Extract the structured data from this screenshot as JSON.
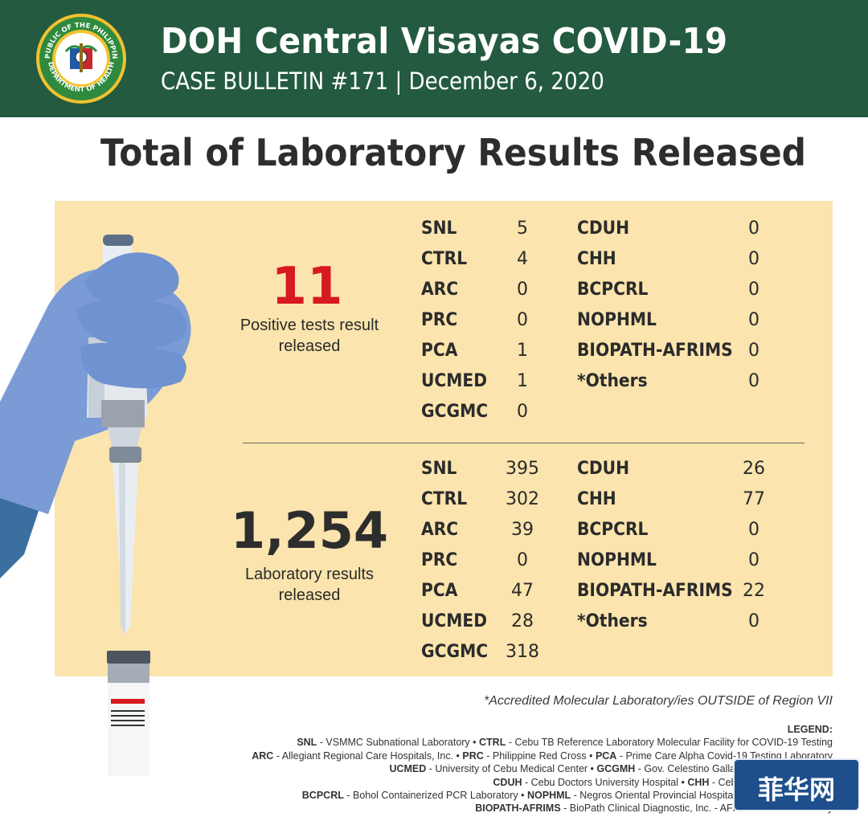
{
  "header": {
    "title": "DOH Central Visayas COVID-19",
    "subtitle": "CASE BULLETIN #171 | December 6, 2020",
    "seal": {
      "top_text": "REPUBLIC OF THE PHILIPPINES",
      "bottom_text": "DEPARTMENT OF HEALTH",
      "icon": "doh-seal-icon"
    }
  },
  "main_title": "Total of Laboratory Results Released",
  "positive": {
    "total": "11",
    "label_line1": "Positive tests result",
    "label_line2": "released",
    "left": [
      {
        "lab": "SNL",
        "value": "5"
      },
      {
        "lab": "CTRL",
        "value": "4"
      },
      {
        "lab": "ARC",
        "value": "0"
      },
      {
        "lab": "PRC",
        "value": "0"
      },
      {
        "lab": "PCA",
        "value": "1"
      },
      {
        "lab": "UCMED",
        "value": "1"
      },
      {
        "lab": "GCGMC",
        "value": "0"
      }
    ],
    "right": [
      {
        "lab": "CDUH",
        "value": "0"
      },
      {
        "lab": "CHH",
        "value": "0"
      },
      {
        "lab": "BCPCRL",
        "value": "0"
      },
      {
        "lab": "NOPHML",
        "value": "0"
      },
      {
        "lab": "BIOPATH-AFRIMS",
        "value": "0"
      },
      {
        "lab": "*Others",
        "value": "0"
      }
    ]
  },
  "released": {
    "total": "1,254",
    "label_line1": "Laboratory results",
    "label_line2": "released",
    "left": [
      {
        "lab": "SNL",
        "value": "395"
      },
      {
        "lab": "CTRL",
        "value": "302"
      },
      {
        "lab": "ARC",
        "value": "39"
      },
      {
        "lab": "PRC",
        "value": "0"
      },
      {
        "lab": "PCA",
        "value": "47"
      },
      {
        "lab": "UCMED",
        "value": "28"
      },
      {
        "lab": "GCGMC",
        "value": "318"
      }
    ],
    "right": [
      {
        "lab": "CDUH",
        "value": "26"
      },
      {
        "lab": "CHH",
        "value": "77"
      },
      {
        "lab": "BCPCRL",
        "value": "0"
      },
      {
        "lab": "NOPHML",
        "value": "0"
      },
      {
        "lab": "BIOPATH-AFRIMS",
        "value": "22"
      },
      {
        "lab": "*Others",
        "value": "0"
      }
    ]
  },
  "footnote": "*Accredited Molecular Laboratory/ies OUTSIDE of Region VII",
  "legend": {
    "heading": "LEGEND:",
    "lines": [
      [
        [
          "SNL",
          " - VSMMC Subnational Laboratory • "
        ],
        [
          "CTRL",
          " - Cebu TB Reference Laboratory Molecular Facility for COVID-19 Testing"
        ]
      ],
      [
        [
          "ARC",
          " - Allegiant Regional Care Hospitals, Inc. • "
        ],
        [
          "PRC",
          " - Philippine Red Cross • "
        ],
        [
          "PCA",
          " - Prime Care Alpha Covid-19 Testing Laboratory"
        ]
      ],
      [
        [
          "UCMED",
          " - University of Cebu Medical Center • "
        ],
        [
          "GCGMH",
          " - Gov. Celestino Gallares Memorial Hospital"
        ]
      ],
      [
        [
          "CDUH",
          " - Cebu Doctors University Hospital • "
        ],
        [
          "CHH",
          " - Cebu Healthcare Hospital"
        ]
      ],
      [
        [
          "BCPCRL",
          " - Bohol Containerized PCR Laboratory • "
        ],
        [
          "NOPHML",
          " - Negros Oriental Provincial Hospital Molecular Laboratory"
        ]
      ],
      [
        [
          "BIOPATH-AFRIMS",
          " - BioPath Clinical Diagnostic, Inc. - AFRIMS PCR Laboratory"
        ]
      ]
    ]
  },
  "watermark": "菲华网",
  "colors": {
    "header_bg": "#235a40",
    "panel_bg": "#fbe4ad",
    "positive_red": "#d71920",
    "glove_blue": "#7a9bd6"
  }
}
